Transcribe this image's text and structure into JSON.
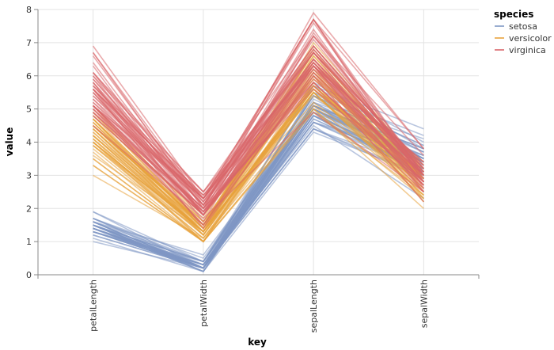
{
  "chart_data": {
    "type": "line",
    "subtype": "parallel-coordinates",
    "title": "",
    "xlabel": "key",
    "ylabel": "value",
    "categories": [
      "petalLength",
      "petalWidth",
      "sepalLength",
      "sepalWidth"
    ],
    "ylim": [
      0,
      8
    ],
    "yticks": [
      "0",
      "1",
      "2",
      "3",
      "4",
      "5",
      "6",
      "7",
      "8"
    ],
    "grid": true,
    "legend": {
      "title": "species",
      "placement": "right"
    },
    "series": [
      {
        "name": "setosa",
        "color": "#7f98c4",
        "lines": [
          [
            1.4,
            0.2,
            5.1,
            3.5
          ],
          [
            1.4,
            0.2,
            4.9,
            3.0
          ],
          [
            1.3,
            0.2,
            4.7,
            3.2
          ],
          [
            1.5,
            0.2,
            4.6,
            3.1
          ],
          [
            1.4,
            0.2,
            5.0,
            3.6
          ],
          [
            1.7,
            0.4,
            5.4,
            3.9
          ],
          [
            1.4,
            0.3,
            4.6,
            3.4
          ],
          [
            1.5,
            0.2,
            5.0,
            3.4
          ],
          [
            1.4,
            0.2,
            4.4,
            2.9
          ],
          [
            1.5,
            0.1,
            4.9,
            3.1
          ],
          [
            1.5,
            0.2,
            5.4,
            3.7
          ],
          [
            1.6,
            0.2,
            4.8,
            3.4
          ],
          [
            1.4,
            0.1,
            4.8,
            3.0
          ],
          [
            1.1,
            0.1,
            4.3,
            3.0
          ],
          [
            1.2,
            0.2,
            5.8,
            4.0
          ],
          [
            1.5,
            0.4,
            5.7,
            4.4
          ],
          [
            1.3,
            0.4,
            5.4,
            3.9
          ],
          [
            1.4,
            0.3,
            5.1,
            3.5
          ],
          [
            1.7,
            0.3,
            5.7,
            3.8
          ],
          [
            1.5,
            0.3,
            5.1,
            3.8
          ],
          [
            1.7,
            0.2,
            5.4,
            3.4
          ],
          [
            1.5,
            0.4,
            5.1,
            3.7
          ],
          [
            1.0,
            0.2,
            4.6,
            3.6
          ],
          [
            1.7,
            0.5,
            5.1,
            3.3
          ],
          [
            1.9,
            0.2,
            4.8,
            3.4
          ],
          [
            1.6,
            0.2,
            5.0,
            3.0
          ],
          [
            1.6,
            0.4,
            5.0,
            3.4
          ],
          [
            1.5,
            0.2,
            5.2,
            3.5
          ],
          [
            1.4,
            0.2,
            5.2,
            3.4
          ],
          [
            1.6,
            0.2,
            4.7,
            3.2
          ],
          [
            1.6,
            0.2,
            4.8,
            3.1
          ],
          [
            1.5,
            0.4,
            5.4,
            3.4
          ],
          [
            1.5,
            0.1,
            5.2,
            4.1
          ],
          [
            1.4,
            0.2,
            5.5,
            4.2
          ],
          [
            1.5,
            0.2,
            4.9,
            3.1
          ],
          [
            1.2,
            0.2,
            5.0,
            3.2
          ],
          [
            1.3,
            0.2,
            5.5,
            3.5
          ],
          [
            1.4,
            0.1,
            4.9,
            3.6
          ],
          [
            1.3,
            0.2,
            4.4,
            3.0
          ],
          [
            1.5,
            0.2,
            5.1,
            3.4
          ],
          [
            1.3,
            0.3,
            5.0,
            3.5
          ],
          [
            1.3,
            0.3,
            4.5,
            2.3
          ],
          [
            1.3,
            0.2,
            4.4,
            3.2
          ],
          [
            1.6,
            0.6,
            5.0,
            3.5
          ],
          [
            1.9,
            0.4,
            5.1,
            3.8
          ],
          [
            1.4,
            0.3,
            4.8,
            3.0
          ],
          [
            1.6,
            0.2,
            5.1,
            3.8
          ],
          [
            1.4,
            0.2,
            4.6,
            3.2
          ],
          [
            1.5,
            0.2,
            5.3,
            3.7
          ],
          [
            1.4,
            0.2,
            5.0,
            3.3
          ]
        ]
      },
      {
        "name": "versicolor",
        "color": "#e8a33d",
        "lines": [
          [
            4.7,
            1.4,
            7.0,
            3.2
          ],
          [
            4.5,
            1.5,
            6.4,
            3.2
          ],
          [
            4.9,
            1.5,
            6.9,
            3.1
          ],
          [
            4.0,
            1.3,
            5.5,
            2.3
          ],
          [
            4.6,
            1.5,
            6.5,
            2.8
          ],
          [
            4.5,
            1.3,
            5.7,
            2.8
          ],
          [
            4.7,
            1.6,
            6.3,
            3.3
          ],
          [
            3.3,
            1.0,
            4.9,
            2.4
          ],
          [
            4.6,
            1.3,
            6.6,
            2.9
          ],
          [
            3.9,
            1.4,
            5.2,
            2.7
          ],
          [
            3.5,
            1.0,
            5.0,
            2.0
          ],
          [
            4.2,
            1.5,
            5.9,
            3.0
          ],
          [
            4.0,
            1.0,
            6.0,
            2.2
          ],
          [
            4.7,
            1.4,
            6.1,
            2.9
          ],
          [
            3.6,
            1.3,
            5.6,
            2.9
          ],
          [
            4.4,
            1.4,
            6.7,
            3.1
          ],
          [
            4.5,
            1.5,
            5.6,
            3.0
          ],
          [
            4.1,
            1.0,
            5.8,
            2.7
          ],
          [
            4.5,
            1.5,
            6.2,
            2.2
          ],
          [
            3.9,
            1.1,
            5.6,
            2.5
          ],
          [
            4.8,
            1.8,
            5.9,
            3.2
          ],
          [
            4.0,
            1.3,
            6.1,
            2.8
          ],
          [
            4.9,
            1.5,
            6.3,
            2.5
          ],
          [
            4.7,
            1.2,
            6.1,
            2.8
          ],
          [
            4.3,
            1.3,
            6.4,
            2.9
          ],
          [
            4.4,
            1.4,
            6.6,
            3.0
          ],
          [
            4.8,
            1.4,
            6.8,
            2.8
          ],
          [
            5.0,
            1.7,
            6.7,
            3.0
          ],
          [
            4.5,
            1.5,
            6.0,
            2.9
          ],
          [
            3.5,
            1.0,
            5.7,
            2.6
          ],
          [
            3.8,
            1.1,
            5.5,
            2.4
          ],
          [
            3.7,
            1.0,
            5.5,
            2.4
          ],
          [
            3.9,
            1.2,
            5.8,
            2.7
          ],
          [
            5.1,
            1.6,
            6.0,
            2.7
          ],
          [
            4.5,
            1.5,
            5.4,
            3.0
          ],
          [
            4.5,
            1.6,
            6.0,
            3.4
          ],
          [
            4.7,
            1.5,
            6.7,
            3.1
          ],
          [
            4.4,
            1.3,
            6.3,
            2.3
          ],
          [
            4.1,
            1.3,
            5.6,
            3.0
          ],
          [
            4.0,
            1.3,
            5.5,
            2.5
          ],
          [
            4.4,
            1.2,
            5.5,
            2.6
          ],
          [
            4.6,
            1.4,
            6.1,
            3.0
          ],
          [
            4.0,
            1.2,
            5.8,
            2.6
          ],
          [
            3.3,
            1.0,
            5.0,
            2.3
          ],
          [
            4.2,
            1.3,
            5.6,
            2.7
          ],
          [
            4.2,
            1.2,
            5.7,
            3.0
          ],
          [
            4.2,
            1.3,
            5.7,
            2.9
          ],
          [
            4.3,
            1.3,
            6.2,
            2.9
          ],
          [
            3.0,
            1.1,
            5.1,
            2.5
          ],
          [
            4.1,
            1.3,
            5.7,
            2.8
          ]
        ]
      },
      {
        "name": "virginica",
        "color": "#d9666a",
        "lines": [
          [
            6.0,
            2.5,
            6.3,
            3.3
          ],
          [
            5.1,
            1.9,
            5.8,
            2.7
          ],
          [
            5.9,
            2.1,
            7.1,
            3.0
          ],
          [
            5.6,
            1.8,
            6.3,
            2.9
          ],
          [
            5.8,
            2.2,
            6.5,
            3.0
          ],
          [
            6.6,
            2.1,
            7.6,
            3.0
          ],
          [
            4.5,
            1.7,
            4.9,
            2.5
          ],
          [
            6.3,
            1.8,
            7.3,
            2.9
          ],
          [
            5.8,
            1.8,
            6.7,
            2.5
          ],
          [
            6.1,
            2.5,
            7.2,
            3.6
          ],
          [
            5.1,
            2.0,
            6.5,
            3.2
          ],
          [
            5.3,
            1.9,
            6.4,
            2.7
          ],
          [
            5.5,
            2.1,
            6.8,
            3.0
          ],
          [
            5.0,
            2.0,
            5.7,
            2.5
          ],
          [
            5.1,
            2.4,
            5.8,
            2.8
          ],
          [
            5.3,
            2.3,
            6.4,
            3.2
          ],
          [
            5.5,
            1.8,
            6.5,
            3.0
          ],
          [
            6.7,
            2.2,
            7.7,
            3.8
          ],
          [
            6.9,
            2.3,
            7.7,
            2.6
          ],
          [
            5.0,
            1.5,
            6.0,
            2.2
          ],
          [
            5.7,
            2.3,
            6.9,
            3.2
          ],
          [
            4.9,
            2.0,
            5.6,
            2.8
          ],
          [
            6.7,
            2.0,
            7.7,
            2.8
          ],
          [
            4.9,
            1.8,
            6.3,
            2.7
          ],
          [
            5.7,
            2.1,
            6.7,
            3.3
          ],
          [
            6.0,
            1.8,
            7.2,
            3.2
          ],
          [
            4.8,
            1.8,
            6.2,
            2.8
          ],
          [
            4.9,
            1.8,
            6.1,
            3.0
          ],
          [
            5.6,
            2.1,
            6.4,
            2.8
          ],
          [
            5.8,
            1.6,
            7.2,
            3.0
          ],
          [
            6.1,
            1.9,
            7.4,
            2.8
          ],
          [
            6.4,
            2.0,
            7.9,
            3.8
          ],
          [
            5.6,
            2.2,
            6.4,
            2.8
          ],
          [
            5.1,
            1.5,
            6.3,
            2.8
          ],
          [
            5.6,
            1.4,
            6.1,
            2.6
          ],
          [
            6.1,
            2.3,
            7.7,
            3.0
          ],
          [
            5.6,
            2.4,
            6.3,
            3.4
          ],
          [
            5.5,
            1.8,
            6.4,
            3.1
          ],
          [
            4.8,
            1.8,
            6.0,
            3.0
          ],
          [
            5.4,
            2.1,
            6.9,
            3.1
          ],
          [
            5.6,
            2.4,
            6.7,
            3.1
          ],
          [
            5.1,
            2.3,
            6.9,
            3.1
          ],
          [
            5.1,
            1.9,
            5.8,
            2.7
          ],
          [
            5.9,
            2.3,
            6.8,
            3.2
          ],
          [
            5.7,
            2.5,
            6.7,
            3.3
          ],
          [
            5.2,
            2.3,
            6.7,
            3.0
          ],
          [
            5.0,
            1.9,
            6.3,
            2.5
          ],
          [
            5.2,
            2.0,
            6.5,
            3.0
          ],
          [
            5.4,
            2.3,
            6.2,
            3.4
          ],
          [
            5.1,
            1.8,
            5.9,
            3.0
          ]
        ]
      }
    ]
  }
}
